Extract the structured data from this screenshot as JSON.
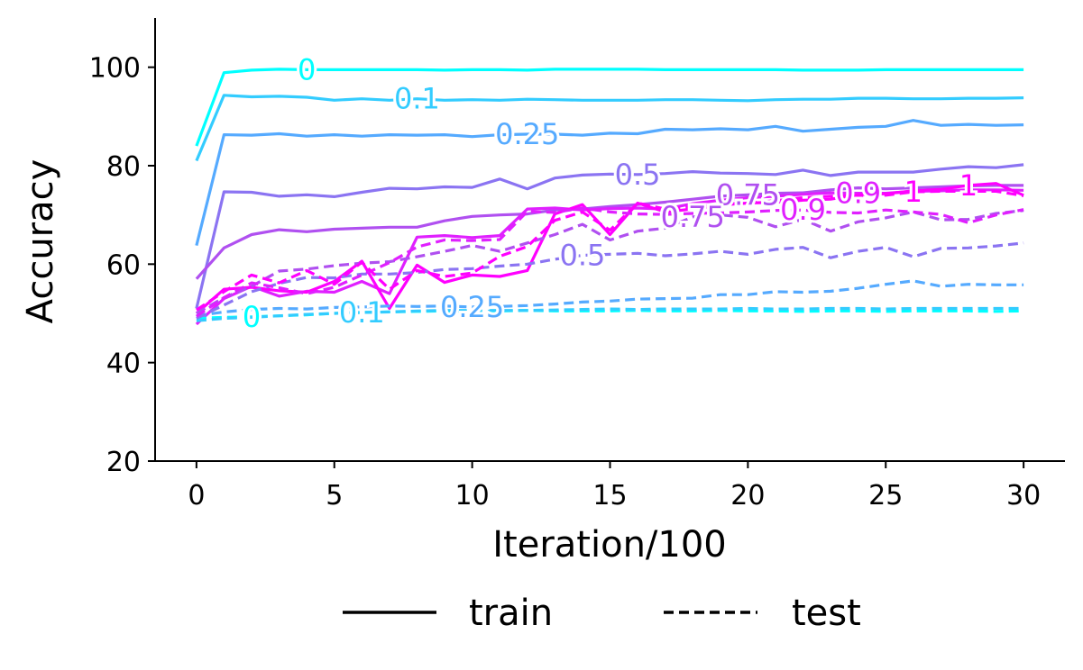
{
  "chart_data": {
    "type": "line",
    "xlabel": "Iteration/100",
    "ylabel": "Accuracy",
    "xlim": [
      -1.5,
      31.5
    ],
    "ylim": [
      20,
      110
    ],
    "xticks": [
      0,
      5,
      10,
      15,
      20,
      25,
      30
    ],
    "xtick_labels": [
      "0",
      "5",
      "10",
      "15",
      "20",
      "25",
      "30"
    ],
    "yticks": [
      20,
      40,
      60,
      80,
      100
    ],
    "ytick_labels": [
      "20",
      "40",
      "60",
      "80",
      "100"
    ],
    "grid": false,
    "legend": {
      "placement": "bottom-center, below axes",
      "entries": [
        {
          "label": "train",
          "style": "solid"
        },
        {
          "label": "test",
          "style": "dashed"
        }
      ]
    },
    "x": [
      0,
      1,
      2,
      3,
      4,
      5,
      6,
      7,
      8,
      9,
      10,
      11,
      12,
      13,
      14,
      15,
      16,
      17,
      18,
      19,
      20,
      21,
      22,
      23,
      24,
      25,
      26,
      27,
      28,
      29,
      30
    ],
    "series": [
      {
        "label": "0",
        "kind": "train",
        "color": "#00ffff",
        "label_x": 4,
        "values": [
          84,
          98.9,
          99.4,
          99.6,
          99.5,
          99.5,
          99.5,
          99.5,
          99.5,
          99.4,
          99.5,
          99.5,
          99.4,
          99.6,
          99.6,
          99.6,
          99.6,
          99.5,
          99.5,
          99.5,
          99.5,
          99.5,
          99.4,
          99.4,
          99.4,
          99.5,
          99.5,
          99.5,
          99.5,
          99.5,
          99.5
        ]
      },
      {
        "label": "0.1",
        "kind": "train",
        "color": "#33ccff",
        "label_x": 8,
        "values": [
          81,
          94.3,
          94,
          94.1,
          93.9,
          93.3,
          93.6,
          93.3,
          93.6,
          93.3,
          93.4,
          93.3,
          93.5,
          93.4,
          93.3,
          93.3,
          93.3,
          93.4,
          93.4,
          93.3,
          93.2,
          93.4,
          93.5,
          93.5,
          93.7,
          93.7,
          93.6,
          93.6,
          93.7,
          93.7,
          93.8
        ]
      },
      {
        "label": "0.25",
        "kind": "train",
        "color": "#55aaff",
        "label_x": 12,
        "values": [
          63.8,
          86.3,
          86.2,
          86.5,
          86,
          86.3,
          86,
          86.3,
          86.2,
          86.3,
          85.9,
          86.3,
          86.4,
          86.4,
          86.2,
          86.6,
          86.5,
          87.4,
          87.3,
          87.5,
          87.3,
          88,
          87,
          87.4,
          87.8,
          88,
          89.2,
          88.2,
          88.4,
          88.2,
          88.3
        ]
      },
      {
        "label": "0.5",
        "kind": "train",
        "color": "#8b74f2",
        "label_x": 16,
        "values": [
          51,
          74.7,
          74.6,
          73.8,
          74.1,
          73.7,
          74.6,
          75.4,
          75.3,
          75.7,
          75.6,
          77.3,
          75.3,
          77.5,
          78.1,
          78.3,
          78.2,
          78.4,
          78.8,
          78.5,
          78.4,
          78.2,
          79.1,
          78,
          78.7,
          78.7,
          78.7,
          79.3,
          79.8,
          79.6,
          80.2
        ]
      },
      {
        "label": "0.75",
        "kind": "train",
        "color": "#b050f0",
        "label_x": 20,
        "values": [
          57,
          63.3,
          66,
          67,
          66.6,
          67.1,
          67.3,
          67.5,
          67.5,
          68.8,
          69.7,
          70,
          70.2,
          71,
          71.2,
          71.7,
          72.1,
          72.6,
          73.2,
          73.8,
          74.1,
          74.4,
          74.5,
          75.1,
          75.5,
          75.3,
          75.5,
          75.7,
          75.9,
          76,
          76
        ]
      },
      {
        "label": "0.9",
        "kind": "train",
        "color": "#e020ff",
        "label_x": 24,
        "values": [
          47.8,
          53,
          55.5,
          53.5,
          54.5,
          54.3,
          56.5,
          54,
          65.5,
          65.8,
          65.4,
          65.8,
          71.2,
          71.4,
          71,
          71.3,
          71.4,
          71.2,
          72.3,
          73,
          73.5,
          73.8,
          74.2,
          74.5,
          74.4,
          74.4,
          74.8,
          74.9,
          75.1,
          75.1,
          75
        ]
      },
      {
        "label": "1",
        "kind": "train",
        "color": "#ff00ff",
        "label_x": 28,
        "values": [
          50,
          54.9,
          55.3,
          54.6,
          54.3,
          56.5,
          60.6,
          51,
          59.8,
          56.3,
          57.8,
          57.5,
          58.7,
          70.2,
          72.1,
          66,
          72.4,
          70.6,
          71.2,
          72,
          72.4,
          72.6,
          73,
          73.2,
          74.1,
          74.3,
          74.9,
          75.2,
          76,
          76.4,
          74
        ]
      },
      {
        "label": "0",
        "kind": "test",
        "color": "#00ffff",
        "label_x": 2,
        "values": [
          49,
          49.2,
          49.3,
          49.5,
          49.7,
          50,
          50.2,
          50.3,
          50.4,
          50.5,
          50.4,
          50.5,
          50.6,
          50.5,
          50.5,
          50.5,
          50.6,
          50.5,
          50.5,
          50.6,
          50.5,
          50.5,
          50.4,
          50.5,
          50.5,
          50.4,
          50.5,
          50.5,
          50.5,
          50.4,
          50.5
        ]
      },
      {
        "label": "0.1",
        "kind": "test",
        "color": "#33ccff",
        "label_x": 6,
        "values": [
          48.5,
          49,
          49.2,
          49.5,
          49.8,
          50,
          50.2,
          50.3,
          50.5,
          50.6,
          50.6,
          50.6,
          50.6,
          50.7,
          50.8,
          50.9,
          50.8,
          50.9,
          50.9,
          50.9,
          51,
          50.9,
          50.9,
          51,
          51,
          50.9,
          51,
          51,
          51,
          51,
          51
        ]
      },
      {
        "label": "0.25",
        "kind": "test",
        "color": "#55aaff",
        "label_x": 10,
        "values": [
          49.5,
          50.3,
          50.8,
          51,
          50.9,
          51.2,
          51.3,
          51.5,
          51.4,
          51.5,
          51.3,
          51.4,
          51.6,
          51.9,
          52.3,
          52.5,
          52.9,
          53,
          53.1,
          53.8,
          53.8,
          54.4,
          54.3,
          54.5,
          55.1,
          55.9,
          56.6,
          55.5,
          55.9,
          55.8,
          55.8
        ]
      },
      {
        "label": "0.5",
        "kind": "test",
        "color": "#8b74f2",
        "label_x": 14,
        "values": [
          49,
          51.7,
          54.4,
          56.1,
          57.3,
          57.2,
          58,
          58,
          58.3,
          58.9,
          59.1,
          59.6,
          60,
          61,
          61.8,
          62,
          62.2,
          61.7,
          62.1,
          62.6,
          62,
          63,
          63.4,
          61.3,
          62.6,
          63.4,
          61.5,
          63.2,
          63.3,
          63.7,
          64.3
        ]
      },
      {
        "label": "0.75",
        "kind": "test",
        "color": "#b050f0",
        "label_x": 18,
        "values": [
          50,
          53.2,
          55.5,
          58.6,
          59,
          59.7,
          60.2,
          60.5,
          61.5,
          62.6,
          63.8,
          62.6,
          64.3,
          66,
          68.1,
          64.9,
          66.7,
          67.3,
          69.6,
          70,
          69.5,
          67.6,
          69.1,
          66.7,
          68.6,
          69.4,
          70.6,
          69,
          69.1,
          70.3,
          70.9
        ]
      },
      {
        "label": "0.9",
        "kind": "test",
        "color": "#e020ff",
        "label_x": 22,
        "values": [
          49.4,
          53.2,
          56.2,
          55.2,
          54,
          55.3,
          57.8,
          60.3,
          63.5,
          64.9,
          64.8,
          65,
          70.7,
          70.5,
          71.4,
          70.6,
          70.2,
          70.1,
          70.3,
          70.4,
          70.6,
          70.9,
          71,
          70.5,
          70.4,
          71,
          70.6,
          70.1,
          68.4,
          70,
          71.1
        ]
      },
      {
        "label": "1",
        "kind": "test",
        "color": "#ff00ff",
        "label_x": 26,
        "values": [
          50.7,
          54.4,
          57.8,
          56.2,
          58.7,
          55.9,
          60.4,
          54.9,
          58.7,
          57.5,
          58.2,
          61.6,
          63.6,
          68.9,
          70.6,
          66.9,
          72.4,
          71.2,
          71.6,
          72.2,
          72.4,
          72.9,
          73.5,
          73.8,
          73.9,
          74,
          74.7,
          74.8,
          74.8,
          74.8,
          73.9
        ]
      }
    ]
  }
}
